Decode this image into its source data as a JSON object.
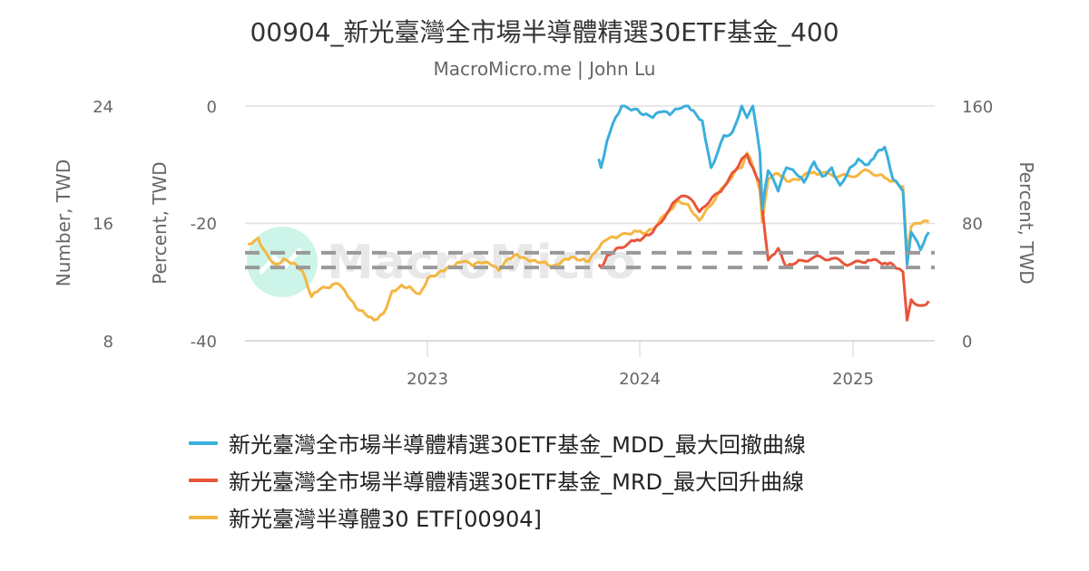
{
  "title": "00904_新光臺灣全市場半導體精選30ETF基金_400",
  "subtitle": "MacroMicro.me | John Lu",
  "watermark": "MacroMicro",
  "colors": {
    "mdd": "#3aafdc",
    "mrd": "#e8553a",
    "price": "#f4b63f",
    "grid": "#e0e0e0",
    "dashed": "#999999",
    "text": "#666666"
  },
  "axes": {
    "left_outer": {
      "title": "Number, TWD",
      "ticks": [
        "24",
        "16",
        "8"
      ],
      "range": [
        8,
        24
      ]
    },
    "left_inner": {
      "title": "Percent, TWD",
      "ticks": [
        "0",
        "-20",
        "-40"
      ],
      "range": [
        -40,
        0
      ]
    },
    "right": {
      "title": "Percent, TWD",
      "ticks": [
        "160",
        "80",
        "0"
      ],
      "range": [
        0,
        160
      ]
    },
    "x": {
      "ticks": [
        "2023",
        "2024",
        "2025"
      ]
    }
  },
  "legend": [
    {
      "label": "新光臺灣全市場半導體精選30ETF基金_MDD_最大回撤曲線",
      "color": "#3aafdc"
    },
    {
      "label": "新光臺灣全市場半導體精選30ETF基金_MRD_最大回升曲線",
      "color": "#e8553a"
    },
    {
      "label": "新光臺灣半導體30 ETF[00904]",
      "color": "#f4b63f"
    }
  ],
  "chart_data": {
    "type": "line",
    "title": "00904_新光臺灣全市場半導體精選30ETF基金_400",
    "subtitle": "MacroMicro.me | John Lu",
    "xlabel": "",
    "x_range": [
      "2022-03",
      "2025-05"
    ],
    "x_ticks": [
      "2023",
      "2024",
      "2025"
    ],
    "legend_position": "bottom",
    "grid": true,
    "reference_lines": [
      {
        "axis": "left_outer",
        "value": 14.0,
        "style": "dashed"
      },
      {
        "axis": "left_outer",
        "value": 13.0,
        "style": "dashed"
      }
    ],
    "series": [
      {
        "name": "新光臺灣全市場半導體精選30ETF基金_MDD_最大回撤曲線",
        "axis": "left_inner",
        "ylabel": "Percent, TWD",
        "ylim": [
          -40,
          0
        ],
        "x": [
          "2023-11-01",
          "2023-11-05",
          "2023-11-15",
          "2023-11-25",
          "2023-12-10",
          "2024-01-01",
          "2024-01-15",
          "2024-02-01",
          "2024-02-15",
          "2024-03-01",
          "2024-03-15",
          "2024-04-01",
          "2024-04-15",
          "2024-04-25",
          "2024-05-10",
          "2024-06-01",
          "2024-06-15",
          "2024-07-01",
          "2024-07-10",
          "2024-07-20",
          "2024-08-01",
          "2024-08-05",
          "2024-08-15",
          "2024-09-01",
          "2024-09-15",
          "2024-10-01",
          "2024-10-15",
          "2024-11-01",
          "2024-11-15",
          "2024-12-01",
          "2024-12-15",
          "2025-01-01",
          "2025-01-15",
          "2025-02-01",
          "2025-02-15",
          "2025-03-01",
          "2025-03-15",
          "2025-04-01",
          "2025-04-08",
          "2025-04-15",
          "2025-05-01",
          "2025-05-15"
        ],
        "values": [
          -9.0,
          -10.5,
          -6.0,
          -3.0,
          0.0,
          -0.5,
          -1.5,
          -2.0,
          -1.0,
          -1.5,
          -0.5,
          0.0,
          -1.5,
          -2.5,
          -10.5,
          -5.0,
          -4.5,
          0.0,
          -2.0,
          0.0,
          -8.0,
          -17.5,
          -11.0,
          -14.5,
          -10.5,
          -11.5,
          -13.0,
          -9.5,
          -12.0,
          -10.5,
          -13.5,
          -10.5,
          -9.0,
          -10.0,
          -8.0,
          -7.0,
          -12.5,
          -14.5,
          -27.0,
          -21.5,
          -24.5,
          -21.5
        ]
      },
      {
        "name": "新光臺灣全市場半導體精選30ETF基金_MRD_最大回升曲線",
        "axis": "right",
        "ylabel": "Percent, TWD",
        "ylim": [
          0,
          160
        ],
        "x": [
          "2023-11-01",
          "2023-11-05",
          "2023-11-15",
          "2023-12-01",
          "2024-01-01",
          "2024-01-15",
          "2024-02-01",
          "2024-03-01",
          "2024-03-15",
          "2024-04-01",
          "2024-04-20",
          "2024-05-01",
          "2024-06-01",
          "2024-06-20",
          "2024-07-01",
          "2024-07-10",
          "2024-07-20",
          "2024-08-01",
          "2024-08-05",
          "2024-08-15",
          "2024-09-01",
          "2024-09-15",
          "2024-10-01",
          "2024-11-01",
          "2024-12-01",
          "2025-01-01",
          "2025-02-01",
          "2025-03-01",
          "2025-03-15",
          "2025-04-01",
          "2025-04-08",
          "2025-04-15",
          "2025-05-01",
          "2025-05-15"
        ],
        "values": [
          52,
          50,
          58,
          63,
          68,
          70,
          74,
          90,
          97,
          98,
          88,
          92,
          105,
          116,
          124,
          127,
          118,
          108,
          90,
          55,
          63,
          50,
          53,
          57,
          56,
          52,
          55,
          53,
          52,
          47,
          14,
          28,
          24,
          27
        ]
      },
      {
        "name": "新光臺灣半導體30 ETF[00904]",
        "axis": "left_outer",
        "ylabel": "Number, TWD",
        "ylim": [
          8,
          24
        ],
        "x": [
          "2022-03-15",
          "2022-04-01",
          "2022-04-15",
          "2022-05-01",
          "2022-05-15",
          "2022-06-01",
          "2022-06-15",
          "2022-07-01",
          "2022-07-15",
          "2022-08-01",
          "2022-08-15",
          "2022-09-01",
          "2022-09-15",
          "2022-10-01",
          "2022-10-15",
          "2022-11-01",
          "2022-11-15",
          "2022-12-01",
          "2022-12-15",
          "2023-01-01",
          "2023-01-15",
          "2023-02-01",
          "2023-02-15",
          "2023-03-01",
          "2023-03-15",
          "2023-04-01",
          "2023-04-15",
          "2023-05-01",
          "2023-05-15",
          "2023-06-01",
          "2023-06-15",
          "2023-07-01",
          "2023-07-15",
          "2023-08-01",
          "2023-08-15",
          "2023-09-01",
          "2023-09-15",
          "2023-10-01",
          "2023-10-15",
          "2023-11-01",
          "2023-11-15",
          "2023-12-01",
          "2024-01-01",
          "2024-01-15",
          "2024-02-01",
          "2024-03-01",
          "2024-03-15",
          "2024-04-01",
          "2024-04-20",
          "2024-05-01",
          "2024-06-01",
          "2024-06-20",
          "2024-07-01",
          "2024-07-10",
          "2024-07-20",
          "2024-08-01",
          "2024-08-05",
          "2024-08-15",
          "2024-09-01",
          "2024-09-15",
          "2024-10-01",
          "2024-11-01",
          "2024-12-01",
          "2025-01-01",
          "2025-02-01",
          "2025-03-01",
          "2025-03-15",
          "2025-04-01",
          "2025-04-08",
          "2025-04-15",
          "2025-05-01",
          "2025-05-15"
        ],
        "values": [
          14.6,
          15.0,
          14.0,
          13.2,
          13.6,
          13.3,
          12.8,
          11.0,
          11.5,
          11.6,
          11.9,
          11.0,
          10.2,
          9.8,
          9.4,
          9.9,
          11.4,
          11.8,
          11.7,
          11.2,
          12.3,
          12.6,
          12.9,
          13.1,
          13.4,
          13.1,
          13.3,
          13.2,
          12.8,
          13.6,
          13.9,
          13.6,
          13.5,
          13.4,
          13.1,
          13.5,
          13.7,
          13.5,
          13.4,
          14.3,
          14.9,
          15.0,
          15.5,
          15.3,
          15.6,
          16.9,
          17.6,
          17.3,
          16.2,
          16.9,
          18.5,
          19.6,
          19.8,
          20.8,
          19.9,
          18.2,
          16.1,
          19.0,
          19.4,
          18.9,
          19.0,
          19.5,
          19.3,
          19.2,
          19.6,
          19.1,
          18.9,
          18.5,
          13.9,
          15.8,
          16.0,
          16.1
        ]
      }
    ]
  }
}
